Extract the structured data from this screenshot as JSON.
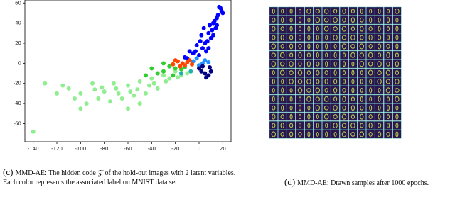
{
  "chart_data": {
    "type": "scatter",
    "xlim": [
      -147,
      27
    ],
    "ylim": [
      -78,
      63
    ],
    "xticks": [
      -140,
      -120,
      -100,
      -80,
      -60,
      -40,
      -20,
      0,
      20
    ],
    "yticks": [
      -60,
      -40,
      -20,
      0,
      20,
      40,
      60
    ],
    "series": [
      {
        "color": "#90ee90",
        "x": [
          -140,
          -130,
          -120,
          -110,
          -100,
          -90,
          -80,
          -70,
          -60,
          -50,
          -40,
          -30,
          -20,
          -45,
          -55,
          -65,
          -75,
          -85,
          -35,
          -25,
          -15,
          -10,
          -95,
          -60,
          -50,
          -100,
          -115,
          -105,
          -88,
          -72,
          -58,
          -42,
          -28,
          -18,
          -68,
          -82,
          -38,
          -52
        ],
        "y": [
          -68,
          -20,
          -30,
          -25,
          -30,
          -20,
          -28,
          -25,
          -22,
          -18,
          -15,
          -12,
          -8,
          -30,
          -32,
          -35,
          -38,
          -35,
          -25,
          -15,
          -12,
          -10,
          -40,
          -45,
          -40,
          -45,
          -22,
          -35,
          -26,
          -20,
          -28,
          -22,
          -18,
          -14,
          -30,
          -24,
          -20,
          -26
        ]
      },
      {
        "color": "#32cd32",
        "x": [
          -40,
          -30,
          -20,
          -35,
          -25,
          -45,
          -15,
          -30,
          -22,
          -12
        ],
        "y": [
          -5,
          -8,
          -5,
          -10,
          -3,
          -12,
          -6,
          0,
          -12,
          -4
        ]
      },
      {
        "color": "#0000ff",
        "x": [
          5,
          8,
          12,
          15,
          18,
          20,
          10,
          3,
          -5,
          -10,
          0,
          14,
          6,
          -2,
          16,
          11,
          -8,
          2,
          9,
          19,
          -12,
          7,
          13,
          17,
          4,
          1,
          -3,
          8,
          12,
          15
        ],
        "y": [
          20,
          30,
          40,
          45,
          55,
          50,
          25,
          15,
          10,
          5,
          8,
          35,
          12,
          18,
          48,
          33,
          12,
          28,
          38,
          52,
          6,
          22,
          42,
          56,
          35,
          22,
          12,
          15,
          28,
          38
        ]
      },
      {
        "color": "#1e90ff",
        "x": [
          -5,
          0,
          3,
          -2,
          5,
          8
        ],
        "y": [
          2,
          -2,
          0,
          5,
          3,
          1
        ]
      },
      {
        "color": "#ff4500",
        "x": [
          -22,
          -18,
          -14,
          -10,
          -16,
          -20,
          -12,
          -8,
          -6
        ],
        "y": [
          -1,
          2,
          0,
          1,
          -3,
          3,
          -2,
          3,
          -1
        ]
      },
      {
        "color": "#000080",
        "x": [
          2,
          5,
          8,
          0,
          10,
          6,
          3,
          9
        ],
        "y": [
          -8,
          -10,
          -12,
          -5,
          -8,
          -14,
          -3,
          -4
        ]
      },
      {
        "color": "#20b2aa",
        "x": [
          -15,
          -7
        ],
        "y": [
          -10,
          -8
        ]
      }
    ]
  },
  "captions": [
    {
      "label": "(c)",
      "text": "MMD-AE: The hidden code 𝒵 of the hold-out images with 2 latent variables. Each color represents the associated label on MNIST data set."
    },
    {
      "label": "(d)",
      "text": "MMD-AE: Drawn samples after 1000 epochs."
    }
  ]
}
